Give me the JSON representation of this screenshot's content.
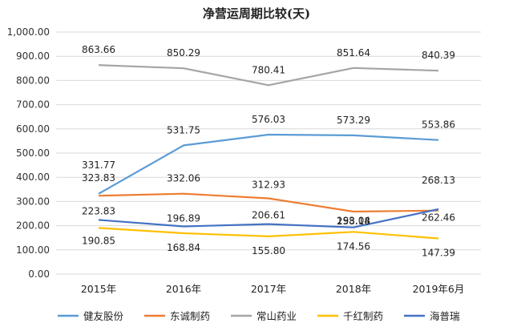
{
  "chart_data": {
    "type": "line",
    "title": "净营运周期比较(天)",
    "categories": [
      "2015年",
      "2016年",
      "2017年",
      "2018年",
      "2019年6月"
    ],
    "ylim": [
      0,
      1000
    ],
    "yticks": [
      "0.00",
      "100.00",
      "200.00",
      "300.00",
      "400.00",
      "500.00",
      "600.00",
      "700.00",
      "800.00",
      "900.00",
      "1,000.00"
    ],
    "grid": true,
    "legend_position": "bottom",
    "series": [
      {
        "name": "健友股份",
        "color": "#5b9bd5",
        "values": [
          331.77,
          531.75,
          576.03,
          573.29,
          553.86
        ],
        "labels": [
          "331.77",
          "531.75",
          "576.03",
          "573.29",
          "553.86"
        ]
      },
      {
        "name": "东诚制药",
        "color": "#ed7d31",
        "values": [
          323.83,
          332.06,
          312.93,
          258.18,
          262.46
        ],
        "labels": [
          "323.83",
          "332.06",
          "312.93",
          "258.18",
          "262.46"
        ]
      },
      {
        "name": "常山药业",
        "color": "#a5a5a5",
        "values": [
          863.66,
          850.29,
          780.41,
          851.64,
          840.39
        ],
        "labels": [
          "863.66",
          "850.29",
          "780.41",
          "851.64",
          "840.39"
        ]
      },
      {
        "name": "千红制药",
        "color": "#ffc000",
        "values": [
          190.85,
          168.84,
          155.8,
          174.56,
          147.39
        ],
        "labels": [
          "190.85",
          "168.84",
          "155.80",
          "174.56",
          "147.39"
        ]
      },
      {
        "name": "海普瑞",
        "color": "#4472c4",
        "values": [
          223.83,
          196.89,
          206.61,
          193.04,
          268.13
        ],
        "labels": [
          "223.83",
          "196.89",
          "206.61",
          "193.04",
          "268.13"
        ]
      }
    ]
  }
}
